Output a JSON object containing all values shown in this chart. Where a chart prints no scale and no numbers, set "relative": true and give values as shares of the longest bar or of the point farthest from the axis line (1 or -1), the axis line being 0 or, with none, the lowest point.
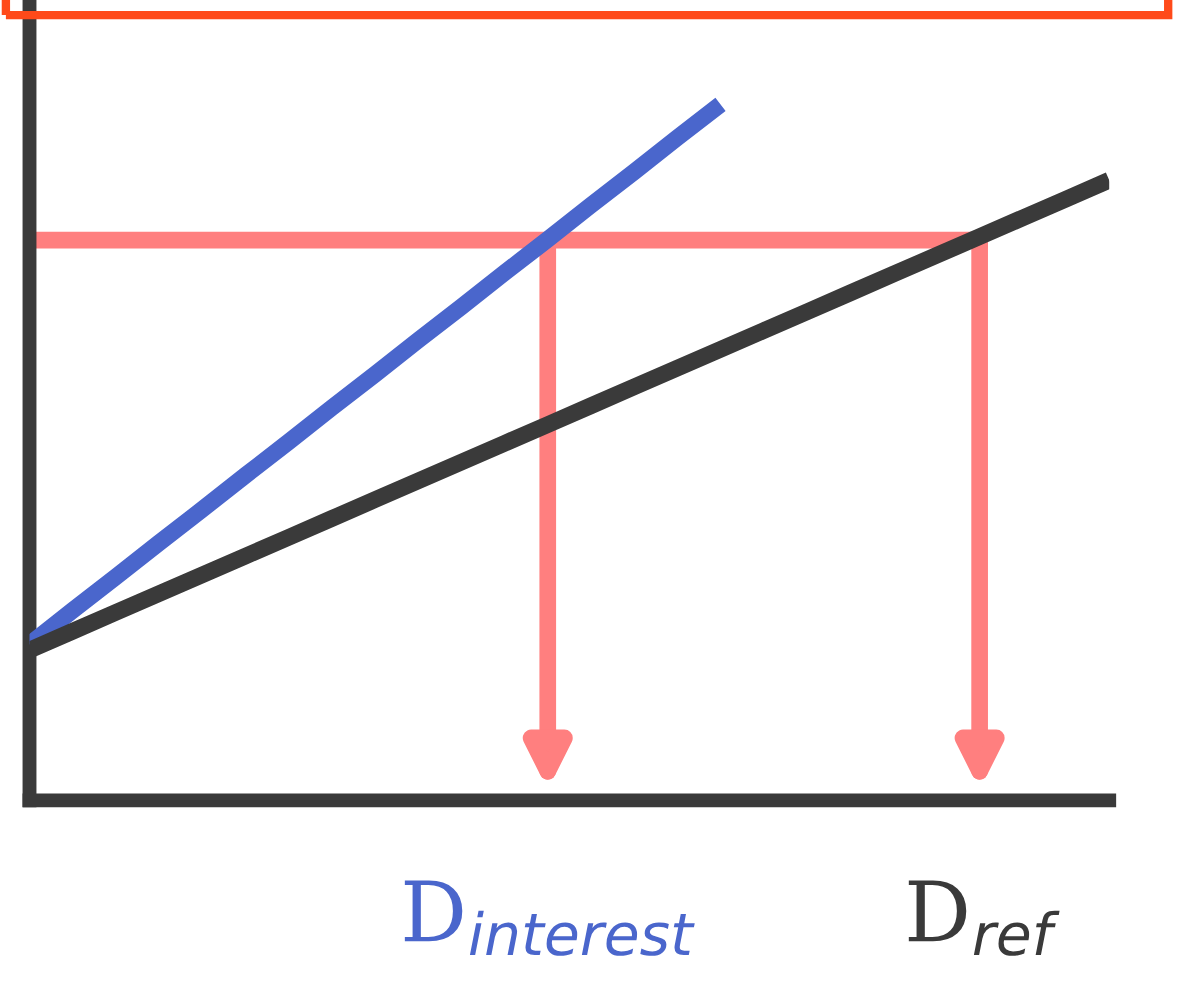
{
  "chart_data": {
    "type": "line",
    "relative": true,
    "categories": [
      null,
      null,
      null,
      null,
      null,
      null,
      null,
      null,
      null,
      null,
      null,
      null,
      "D$_{interest}$",
      null,
      null,
      null,
      null,
      null,
      null,
      null,
      null,
      null,
      "D$_{ref}$",
      null,
      null,
      null
    ],
    "series": [
      {
        "color": "#4a66cc",
        "values": [
          0.224,
          0.273,
          0.321,
          0.37,
          0.418,
          0.467,
          0.515,
          0.564,
          0.612,
          0.661,
          0.709,
          0.758,
          0.806,
          0.855,
          0.903,
          0.952,
          1.0,
          null,
          null,
          null,
          null,
          null,
          null,
          null,
          null,
          null
        ]
      },
      {
        "color": "#3a3a3a",
        "values": [
          0.216,
          0.243,
          0.27,
          0.297,
          0.324,
          0.351,
          0.378,
          0.405,
          0.432,
          0.459,
          0.486,
          0.513,
          0.54,
          0.567,
          0.594,
          0.621,
          0.648,
          0.675,
          0.702,
          0.729,
          0.756,
          0.783,
          0.81,
          0.837,
          0.864,
          0.891
        ]
      }
    ],
    "ref_lines": [
      {
        "axis": "y",
        "value": 0.805,
        "color": "#ff7f7f"
      }
    ],
    "grid": false,
    "legend": false,
    "marker": "none",
    "line_style": "solid"
  }
}
